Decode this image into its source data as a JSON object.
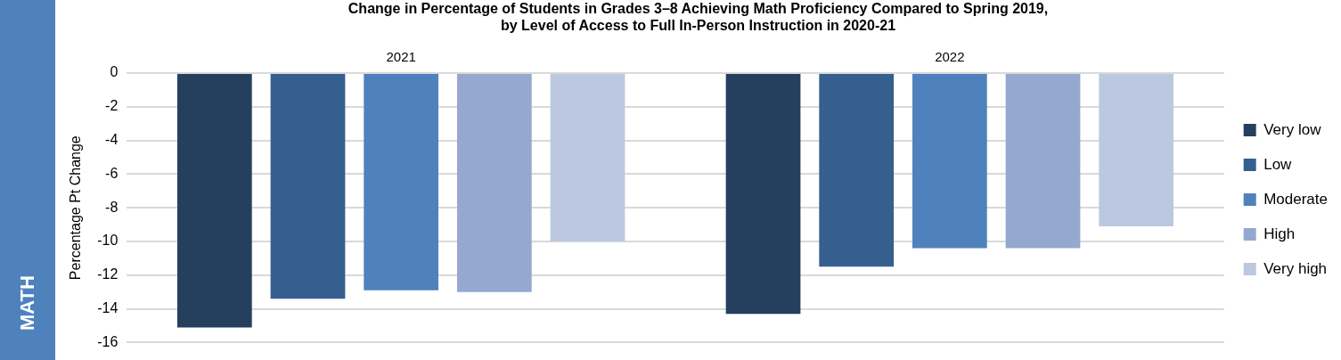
{
  "chart_data": {
    "type": "bar",
    "title": "Change in Percentage of Students in Grades 3–8 Achieving Math Proficiency Compared to Spring 2019,\nby Level of Access to Full In-Person Instruction in 2020-21",
    "ylabel": "Percentage Pt Change",
    "annotations": [
      "MATH"
    ],
    "categories": [
      "2021",
      "2022"
    ],
    "series": [
      {
        "name": "Very low",
        "color": "#253f5f",
        "values": [
          -15.1,
          -14.3
        ]
      },
      {
        "name": "Low",
        "color": "#355f8f",
        "values": [
          -13.4,
          -11.5
        ]
      },
      {
        "name": "Moderate",
        "color": "#4f81bd",
        "values": [
          -12.9,
          -10.4
        ]
      },
      {
        "name": "High",
        "color": "#95a8cf",
        "values": [
          -13.0,
          -10.4
        ]
      },
      {
        "name": "Very high",
        "color": "#bbc8e0",
        "values": [
          -10.0,
          -9.1
        ]
      }
    ],
    "ylim": [
      -16,
      0
    ],
    "yticks": [
      0,
      -2,
      -4,
      -6,
      -8,
      -10,
      -12,
      -14,
      -16
    ],
    "grid": "y",
    "legend": "right"
  }
}
